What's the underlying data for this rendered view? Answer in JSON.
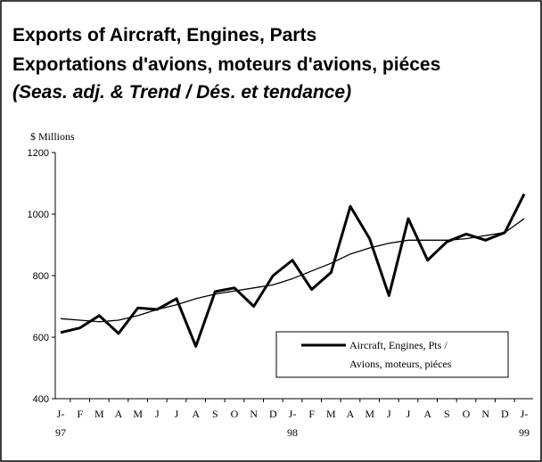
{
  "chart_data": {
    "type": "line",
    "title": "Exports of Aircraft, Engines, Parts",
    "subtitle": "Exportations d'avions, moteurs d'avions, piéces",
    "note": "(Seas. adj. & Trend / Dés. et tendance)",
    "y_axis_label": "$ Millions",
    "categories": [
      "J-\n97",
      "F",
      "M",
      "A",
      "M",
      "J",
      "J",
      "A",
      "S",
      "O",
      "N",
      "D",
      "J-\n98",
      "F",
      "M",
      "A",
      "M",
      "J",
      "J",
      "A",
      "S",
      "O",
      "N",
      "D",
      "J-\n99"
    ],
    "series": [
      {
        "name": "Aircraft, Engines, Pts /\nAvions, moteurs, piéces",
        "color": "#000000",
        "values": [
          615,
          630,
          670,
          612,
          695,
          690,
          725,
          570,
          748,
          760,
          700,
          800,
          850,
          755,
          810,
          1025,
          920,
          735,
          985,
          850,
          910,
          935,
          915,
          940,
          1065
        ]
      },
      {
        "color": "#000000",
        "values": [
          660,
          655,
          650,
          655,
          670,
          690,
          705,
          725,
          740,
          750,
          760,
          770,
          790,
          815,
          840,
          870,
          890,
          905,
          915,
          915,
          915,
          920,
          930,
          940,
          985
        ]
      }
    ],
    "ylim": [
      400,
      1200
    ],
    "yticks": [
      400,
      600,
      800,
      1000,
      1200
    ],
    "legend": "lower right"
  }
}
